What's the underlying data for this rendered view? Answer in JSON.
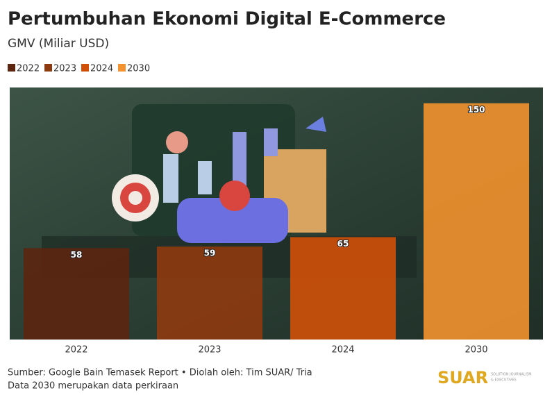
{
  "chart_data": {
    "type": "bar",
    "title": "Pertumbuhan Ekonomi Digital E-Commerce",
    "subtitle": "GMV (Miliar USD)",
    "categories": [
      "2022",
      "2023",
      "2024",
      "2030"
    ],
    "values": [
      58,
      59,
      65,
      150
    ],
    "colors": [
      "#5c2510",
      "#8e3a10",
      "#d05008",
      "#f3922e"
    ],
    "ylim": [
      0,
      160
    ],
    "source": "Sumber: Google Bain Temasek Report • Diolah oleh: Tim SUAR/ Tria",
    "note": "Data 2030 merupakan data perkiraan",
    "logo": {
      "name": "SUAR",
      "tagline": [
        "SOLUTION JOURNALISM",
        "& EXECUTIVES"
      ]
    }
  }
}
